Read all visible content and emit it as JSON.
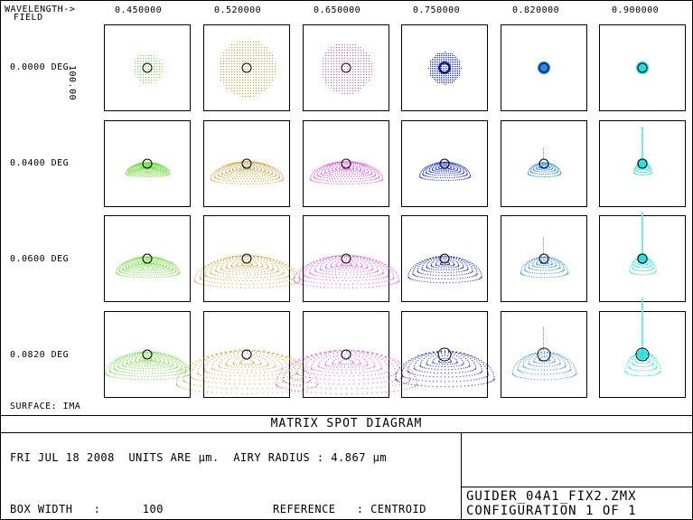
{
  "header": {
    "wavelength_label": "WAVELENGTH->",
    "field_label": "FIELD"
  },
  "wavelengths": [
    "0.450000",
    "0.520000",
    "0.650000",
    "0.750000",
    "0.820000",
    "0.900000"
  ],
  "wavelength_colors": [
    "#66dd33",
    "#cc9922",
    "#ee44dd",
    "#1122cc",
    "#2288ee",
    "#22dddd"
  ],
  "fields": [
    "0.0000 DEG",
    "0.0400 DEG",
    "0.0600 DEG",
    "0.0820 DEG"
  ],
  "scale_label": "100.00",
  "surface_label": "SURFACE: IMA",
  "title": "MATRIX SPOT DIAGRAM",
  "info": {
    "date_line": "FRI JUL 18 2008  UNITS ARE µm.  AIRY RADIUS : 4.867 µm",
    "box_width": "BOX WIDTH   :      100",
    "reference": "REFERENCE   : CENTROID",
    "file_name": "GUIDER_04A1_FIX2.ZMX",
    "configuration": "CONFIGURATION 1 OF 1"
  }
}
